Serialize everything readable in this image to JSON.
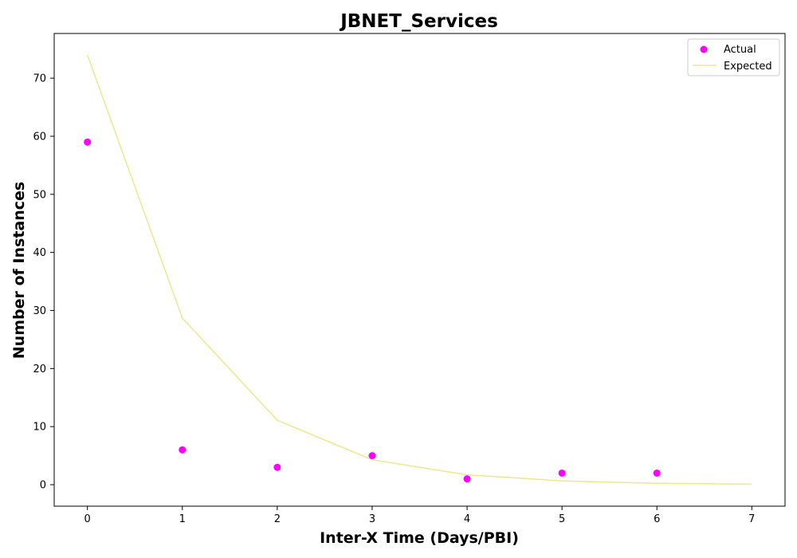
{
  "chart_data": {
    "type": "scatter",
    "title": "JBNET_Services",
    "xlabel": "Inter-X Time (Days/PBI)",
    "ylabel": "Number of Instances",
    "xlim": [
      -0.35,
      7.35
    ],
    "ylim": [
      -3.7,
      77.7
    ],
    "xticks": [
      0,
      1,
      2,
      3,
      4,
      5,
      6,
      7
    ],
    "yticks": [
      0,
      10,
      20,
      30,
      40,
      50,
      60,
      70
    ],
    "grid": false,
    "legend_position": "top-right",
    "series": [
      {
        "name": "Actual",
        "kind": "scatter",
        "color": "#ff00ff",
        "x": [
          0,
          1,
          2,
          3,
          4,
          5,
          6
        ],
        "y": [
          59,
          6,
          3,
          5,
          1,
          2,
          2
        ]
      },
      {
        "name": "Expected",
        "kind": "line",
        "color": "#f0e68c",
        "x": [
          0,
          1,
          2,
          3,
          4,
          5,
          6,
          7
        ],
        "y": [
          74,
          28.7,
          11.1,
          4.3,
          1.7,
          0.65,
          0.25,
          0.1
        ]
      }
    ]
  }
}
